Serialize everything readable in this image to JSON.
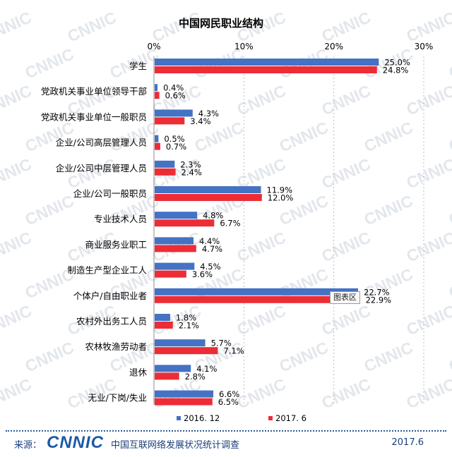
{
  "chart_data": {
    "type": "bar",
    "orientation": "horizontal",
    "title": "中国网民职业结构",
    "categories": [
      "学生",
      "党政机关事业单位领导干部",
      "党政机关事业单位一般职员",
      "企业/公司高层管理人员",
      "企业/公司中层管理人员",
      "企业/公司一般职员",
      "专业技术人员",
      "商业服务业职工",
      "制造生产型企业工人",
      "个体户/自由职业者",
      "农村外出务工人员",
      "农林牧渔劳动者",
      "退休",
      "无业/下岗/失业"
    ],
    "series": [
      {
        "name": "2016. 12",
        "color": "#4472c4",
        "values": [
          25.0,
          0.4,
          4.3,
          0.5,
          2.3,
          11.9,
          4.8,
          4.4,
          4.5,
          22.7,
          1.8,
          5.7,
          4.1,
          6.6
        ]
      },
      {
        "name": "2017. 6",
        "color": "#ec2d36",
        "values": [
          24.8,
          0.6,
          3.4,
          0.7,
          2.4,
          12.0,
          6.7,
          4.7,
          3.6,
          22.9,
          2.1,
          7.1,
          2.8,
          6.5
        ]
      }
    ],
    "xlim": [
      0,
      30
    ],
    "xticks": [
      "0%",
      "10%",
      "20%",
      "30%"
    ],
    "xtick_values": [
      0,
      10,
      20,
      30
    ],
    "value_suffix": "%",
    "legend_position": "bottom",
    "tooltip": "图表区"
  },
  "watermark": "CNNIC",
  "footer": {
    "source_label": "来源：",
    "logo": "CNNIC",
    "report": "中国互联网络发展状况统计调查",
    "date": "2017.6"
  }
}
